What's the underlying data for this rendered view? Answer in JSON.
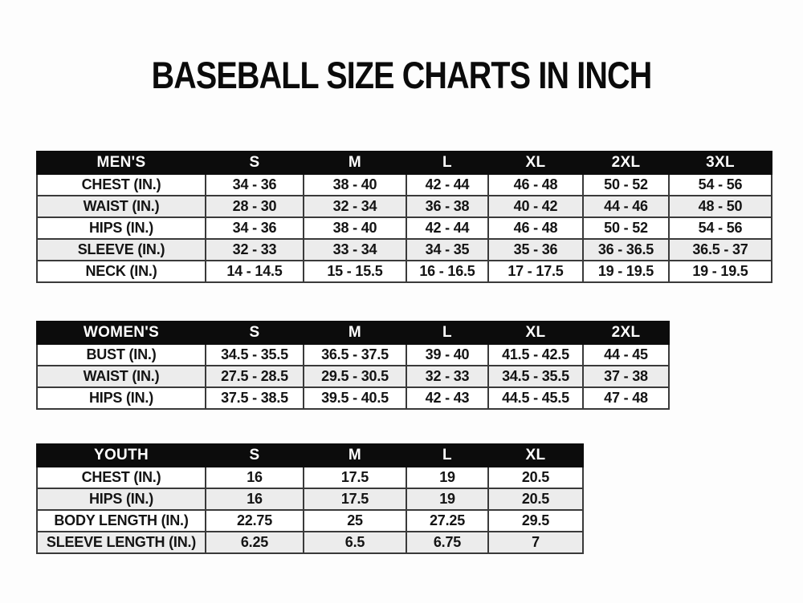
{
  "title": "BASEBALL SIZE CHARTS IN INCH",
  "colors": {
    "header_bg": "#0c0c0c",
    "header_text": "#ffffff",
    "row_stripe": "#ececec",
    "grid_border": "#3a3a3a",
    "text": "#141414",
    "page_bg": "#fdfdfd"
  },
  "chart_data": [
    {
      "type": "table",
      "name": "mens",
      "title": "MEN'S",
      "columns": [
        "MEN'S",
        "S",
        "M",
        "L",
        "XL",
        "2XL",
        "3XL"
      ],
      "rows": [
        [
          "CHEST (IN.)",
          "34 - 36",
          "38 - 40",
          "42 - 44",
          "46 - 48",
          "50 - 52",
          "54 - 56"
        ],
        [
          "WAIST (IN.)",
          "28 - 30",
          "32 - 34",
          "36 - 38",
          "40 - 42",
          "44 - 46",
          "48 - 50"
        ],
        [
          "HIPS (IN.)",
          "34 - 36",
          "38 - 40",
          "42 - 44",
          "46 - 48",
          "50 - 52",
          "54 - 56"
        ],
        [
          "SLEEVE (IN.)",
          "32 - 33",
          "33 - 34",
          "34 - 35",
          "35 - 36",
          "36 - 36.5",
          "36.5 - 37"
        ],
        [
          "NECK (IN.)",
          "14 - 14.5",
          "15 - 15.5",
          "16 - 16.5",
          "17 - 17.5",
          "19 - 19.5",
          "19 - 19.5"
        ]
      ]
    },
    {
      "type": "table",
      "name": "womens",
      "title": "WOMEN'S",
      "columns": [
        "WOMEN'S",
        "S",
        "M",
        "L",
        "XL",
        "2XL"
      ],
      "rows": [
        [
          "BUST (IN.)",
          "34.5 - 35.5",
          "36.5 - 37.5",
          "39 - 40",
          "41.5 - 42.5",
          "44 - 45"
        ],
        [
          "WAIST (IN.)",
          "27.5 - 28.5",
          "29.5 - 30.5",
          "32 - 33",
          "34.5 - 35.5",
          "37 - 38"
        ],
        [
          "HIPS (IN.)",
          "37.5 - 38.5",
          "39.5 - 40.5",
          "42 - 43",
          "44.5 - 45.5",
          "47 - 48"
        ]
      ]
    },
    {
      "type": "table",
      "name": "youth",
      "title": "YOUTH",
      "columns": [
        "YOUTH",
        "S",
        "M",
        "L",
        "XL"
      ],
      "rows": [
        [
          "CHEST (IN.)",
          "16",
          "17.5",
          "19",
          "20.5"
        ],
        [
          "HIPS (IN.)",
          "16",
          "17.5",
          "19",
          "20.5"
        ],
        [
          "BODY LENGTH (IN.)",
          "22.75",
          "25",
          "27.25",
          "29.5"
        ],
        [
          "SLEEVE LENGTH (IN.)",
          "6.25",
          "6.5",
          "6.75",
          "7"
        ]
      ]
    }
  ]
}
